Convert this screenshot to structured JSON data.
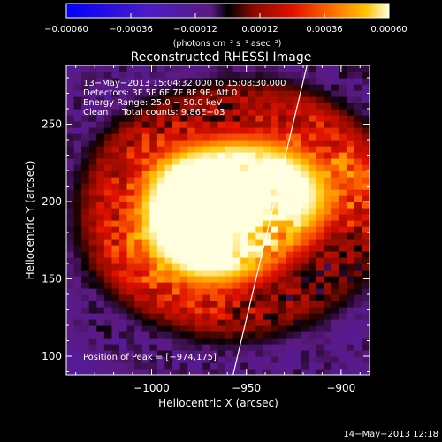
{
  "chart_data": {
    "type": "heatmap",
    "title": "Reconstructed RHESSI Image",
    "xlabel": "Heliocentric X (arcsec)",
    "ylabel": "Heliocentric Y (arcsec)",
    "xlim": [
      -1045,
      -885
    ],
    "ylim": [
      88,
      288
    ],
    "x_ticks": [
      -1000,
      -950,
      -900
    ],
    "x_tick_labels": [
      "−1000",
      "−950",
      "−900"
    ],
    "y_ticks": [
      100,
      150,
      200,
      250
    ],
    "y_tick_labels": [
      "100",
      "150",
      "200",
      "250"
    ],
    "colorbar": {
      "range": [
        -0.0006,
        0.0006
      ],
      "ticks": [
        -0.0006,
        -0.00036,
        -0.00012,
        0.00012,
        0.00036,
        0.0006
      ],
      "tick_labels": [
        "−0.00060",
        "−0.00036",
        "−0.00012",
        "0.00012",
        "0.00036",
        "0.00060"
      ],
      "units": "(photons cm⁻² s⁻¹ asec⁻²)"
    },
    "info_lines": [
      "13−May−2013 15:04:32.000 to 15:08:30.000",
      "Detectors: 3F 5F 6F 7F 8F 9F, Att 0",
      "Energy Range: 25.0 − 50.0 keV",
      "Clean     Total counts: 9.86E+03"
    ],
    "peak_label": "Position of Peak = [−974,175]",
    "peak": [
      -974,
      175
    ],
    "limb_line": [
      [
        -957,
        88
      ],
      [
        -918,
        288
      ]
    ],
    "sources": [
      {
        "x": -975,
        "y": 180,
        "intensity": 0.0006
      },
      {
        "x": -960,
        "y": 210,
        "intensity": 0.00045
      },
      {
        "x": -990,
        "y": 215,
        "intensity": 0.00035
      },
      {
        "x": -930,
        "y": 205,
        "intensity": 0.0004
      },
      {
        "x": -1000,
        "y": 170,
        "intensity": 0.0002
      },
      {
        "x": -895,
        "y": 210,
        "intensity": 0.00025
      },
      {
        "x": -965,
        "y": 150,
        "intensity": 0.0002
      },
      {
        "x": -925,
        "y": 245,
        "intensity": 0.00015
      }
    ]
  },
  "timestamp": "14−May−2013 12:18"
}
